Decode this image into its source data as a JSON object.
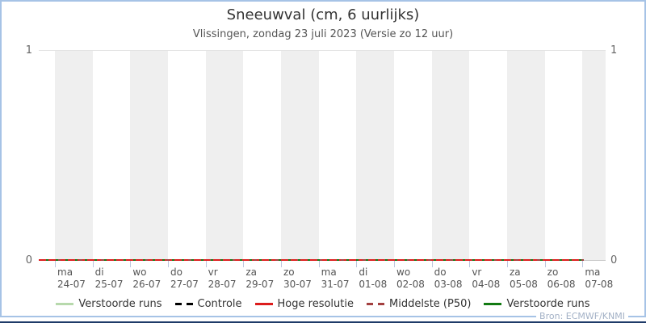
{
  "chart": {
    "title": "Sneeuwval (cm, 6 uurlijks)",
    "subtitle": "Vlissingen, zondag 23 juli 2023 (Versie zo 12 uur)",
    "source": "Bron: ECMWF/KNMI",
    "y_axis": {
      "min_label": "0",
      "max_label": "1"
    },
    "x_axis": {
      "days": [
        {
          "day": "ma",
          "date": "24-07"
        },
        {
          "day": "di",
          "date": "25-07"
        },
        {
          "day": "wo",
          "date": "26-07"
        },
        {
          "day": "do",
          "date": "27-07"
        },
        {
          "day": "vr",
          "date": "28-07"
        },
        {
          "day": "za",
          "date": "29-07"
        },
        {
          "day": "zo",
          "date": "30-07"
        },
        {
          "day": "ma",
          "date": "31-07"
        },
        {
          "day": "di",
          "date": "01-08"
        },
        {
          "day": "wo",
          "date": "02-08"
        },
        {
          "day": "do",
          "date": "03-08"
        },
        {
          "day": "vr",
          "date": "04-08"
        },
        {
          "day": "za",
          "date": "05-08"
        },
        {
          "day": "zo",
          "date": "06-08"
        },
        {
          "day": "ma",
          "date": "07-08"
        }
      ]
    },
    "legend": [
      {
        "label": "Verstoorde runs",
        "color": "#b7d9ac",
        "dash": "solid"
      },
      {
        "label": "Controle",
        "color": "#000000",
        "dash": "dashed"
      },
      {
        "label": "Hoge resolutie",
        "color": "#dc1c1c",
        "dash": "solid"
      },
      {
        "label": "Middelste (P50)",
        "color": "#a34040",
        "dash": "dashed"
      },
      {
        "label": "Verstoorde runs",
        "color": "#127a12",
        "dash": "solid"
      }
    ],
    "colors": {
      "frame_border": "#a6c3e6",
      "bottom_bar": "#1e3a68",
      "band": "#efefef",
      "grid": "#e4e4e4",
      "axis": "#c9c9c9",
      "tick": "#bdc7de",
      "red": "#dc1c1c",
      "green": "#127a12",
      "darkred": "#a34040",
      "lightgreen": "#b7d9ac",
      "black": "#000000"
    }
  },
  "chart_data": {
    "type": "line",
    "title": "Sneeuwval (cm, 6 uurlijks)",
    "subtitle": "Vlissingen, zondag 23 juli 2023 (Versie zo 12 uur)",
    "ylim": [
      0,
      1
    ],
    "yticks": [
      0,
      1
    ],
    "x_categories": [
      "ma 24-07",
      "di 25-07",
      "wo 26-07",
      "do 27-07",
      "vr 28-07",
      "za 29-07",
      "zo 30-07",
      "ma 31-07",
      "di 01-08",
      "wo 02-08",
      "do 03-08",
      "vr 04-08",
      "za 05-08",
      "zo 06-08",
      "ma 07-08"
    ],
    "grid": "horizontal-only",
    "legend_position": "bottom",
    "series": [
      {
        "name": "Verstoorde runs",
        "color": "#b7d9ac",
        "style": "solid",
        "values": [
          0,
          0,
          0,
          0,
          0,
          0,
          0,
          0,
          0,
          0,
          0,
          0,
          0,
          0,
          0
        ]
      },
      {
        "name": "Controle",
        "color": "#000000",
        "style": "dashed",
        "values": [
          0,
          0,
          0,
          0,
          0,
          0,
          0,
          0,
          0,
          0,
          0,
          0,
          0,
          0,
          0
        ]
      },
      {
        "name": "Hoge resolutie",
        "color": "#dc1c1c",
        "style": "solid",
        "values": [
          0,
          0,
          0,
          0,
          0,
          0,
          0,
          0,
          0,
          0,
          0,
          0,
          0,
          0,
          0
        ]
      },
      {
        "name": "Middelste (P50)",
        "color": "#a34040",
        "style": "dashed",
        "values": [
          0,
          0,
          0,
          0,
          0,
          0,
          0,
          0,
          0,
          0,
          0,
          0,
          0,
          0,
          0
        ]
      },
      {
        "name": "Verstoorde runs",
        "color": "#127a12",
        "style": "solid",
        "values": [
          0,
          0,
          0,
          0,
          0,
          0,
          0,
          0,
          0,
          0,
          0,
          0,
          0,
          0,
          0
        ]
      }
    ]
  }
}
